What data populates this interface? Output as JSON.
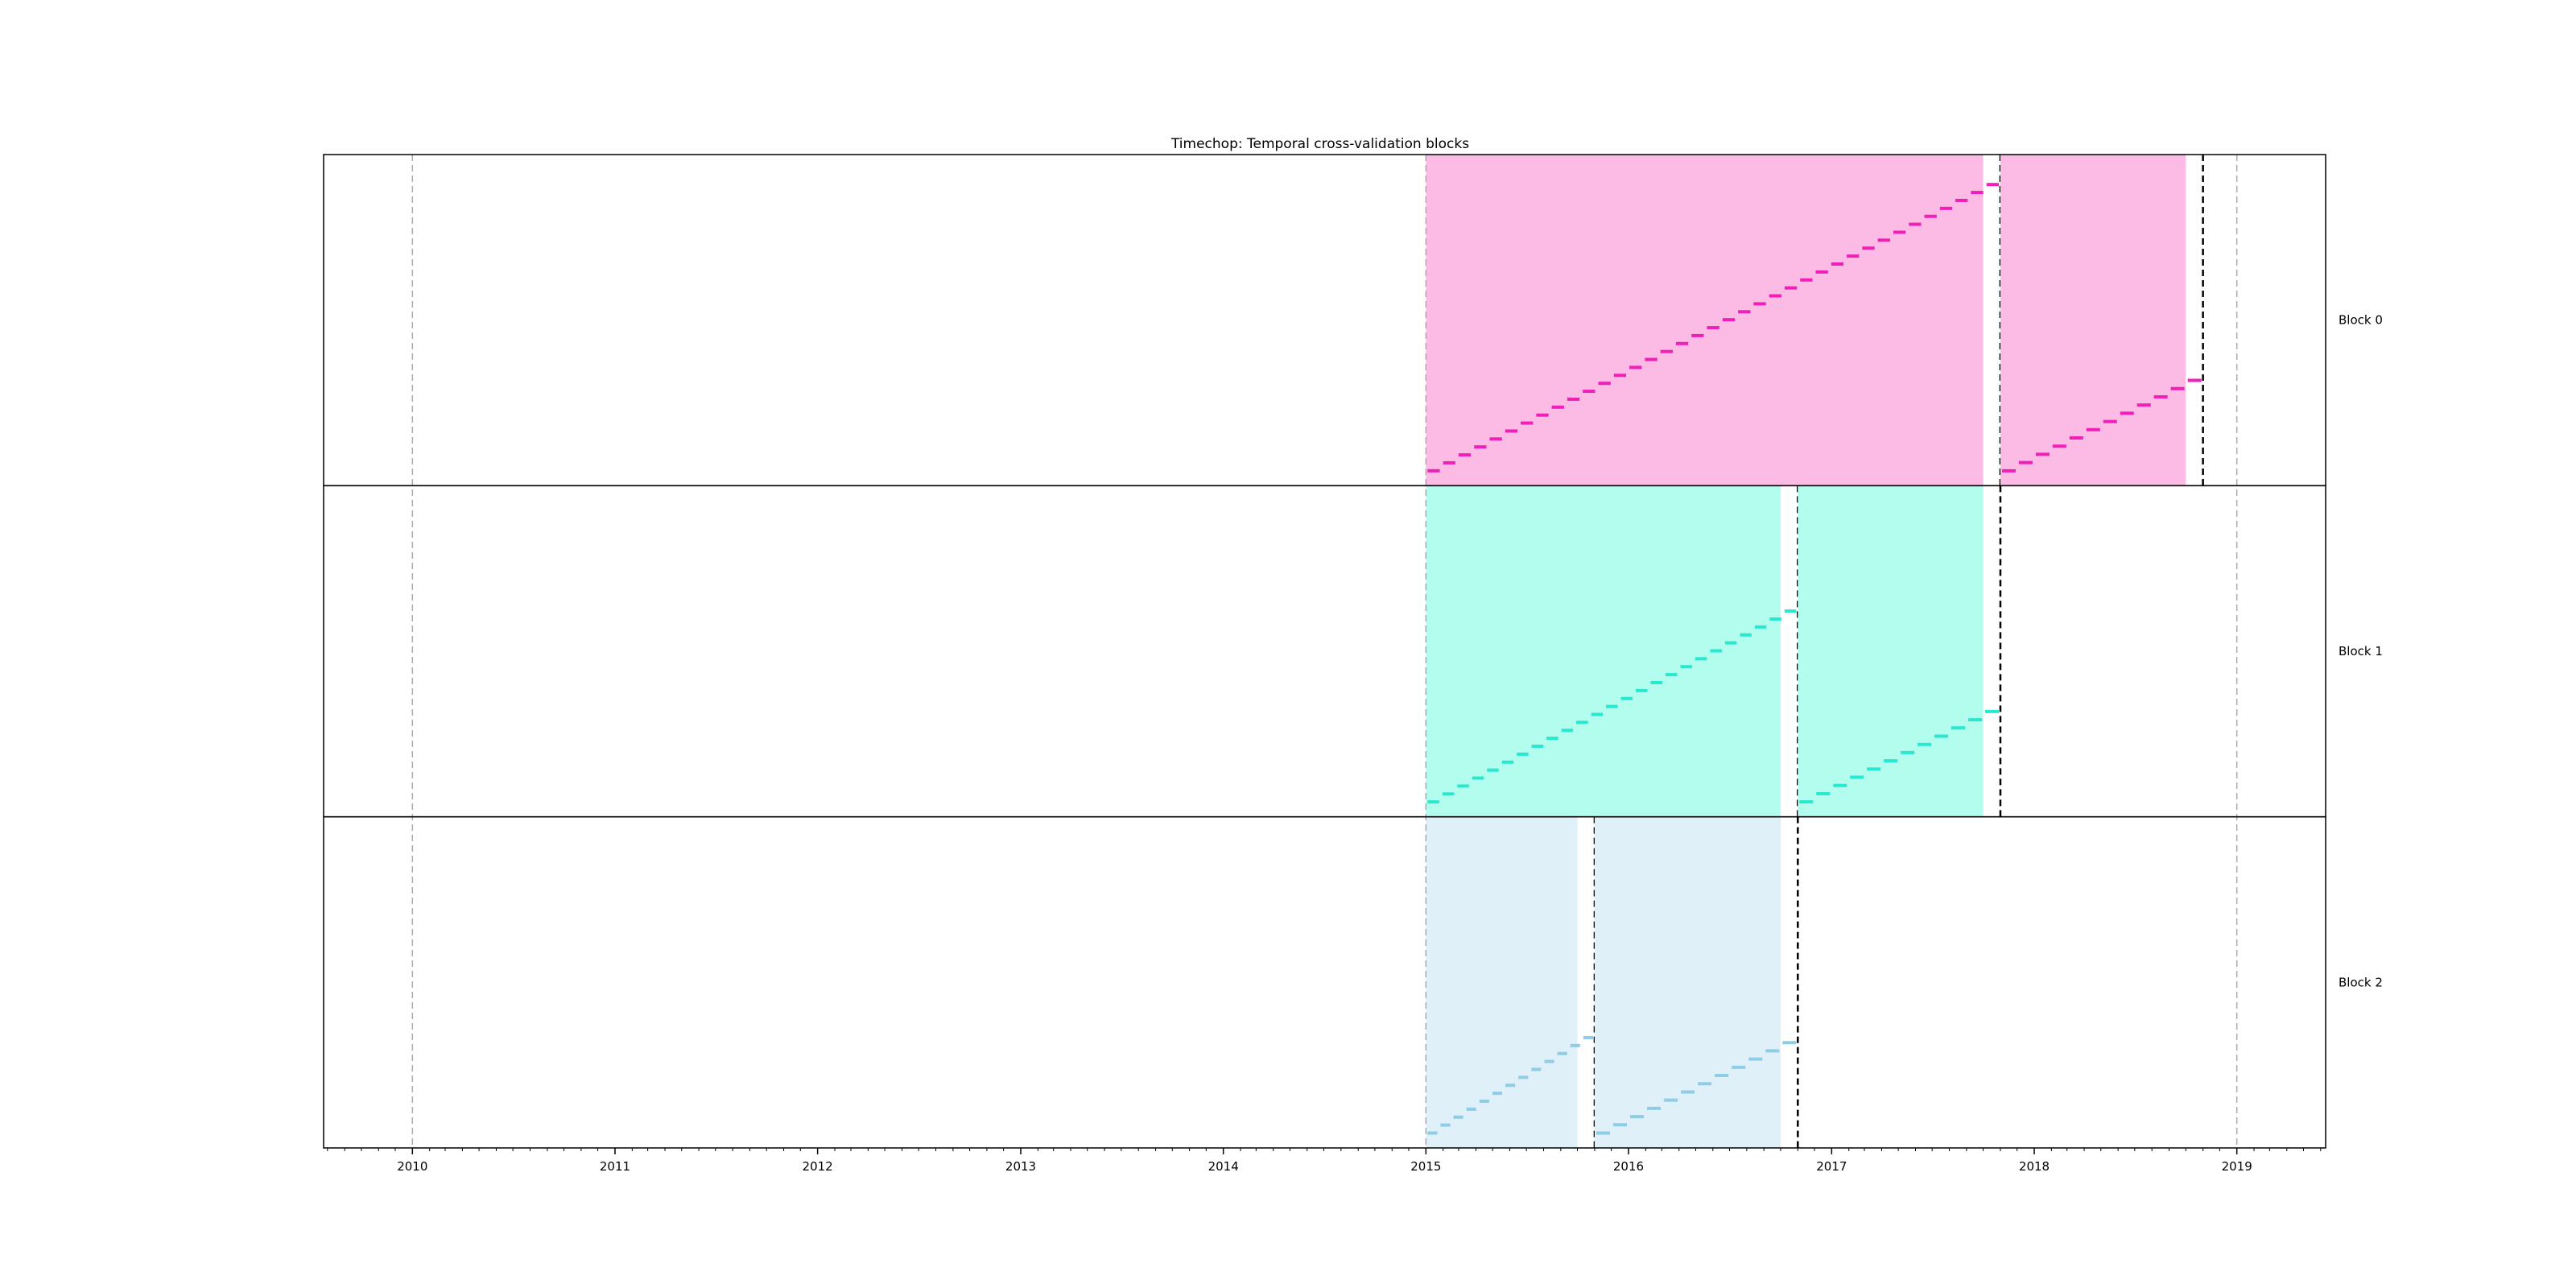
{
  "chart_data": {
    "type": "timeline",
    "title": "Timechop: Temporal cross-validation blocks",
    "xlim": [
      "2009-07-25",
      "2019-06-10"
    ],
    "x_ticks": [
      {
        "label": "2010",
        "date": "2010-01-01"
      },
      {
        "label": "2011",
        "date": "2011-01-01"
      },
      {
        "label": "2012",
        "date": "2012-01-01"
      },
      {
        "label": "2013",
        "date": "2013-01-01"
      },
      {
        "label": "2014",
        "date": "2014-01-01"
      },
      {
        "label": "2015",
        "date": "2015-01-01"
      },
      {
        "label": "2016",
        "date": "2016-01-01"
      },
      {
        "label": "2017",
        "date": "2017-01-01"
      },
      {
        "label": "2018",
        "date": "2018-01-01"
      },
      {
        "label": "2019",
        "date": "2019-01-01"
      }
    ],
    "boundary_lines": [
      "2010-01-01",
      "2015-01-01",
      "2019-01-01"
    ],
    "blocks": [
      {
        "label": "Block 0",
        "color_shade": "#fbbbe4",
        "color_mark": "#f01fb8",
        "train": {
          "start": "2015-01-01",
          "end": "2017-10-01",
          "split": "2017-11-01",
          "steps": 37
        },
        "test": {
          "start": "2017-11-01",
          "end": "2018-10-01",
          "split": "2018-11-01",
          "steps": 12
        }
      },
      {
        "label": "Block 1",
        "color_shade": "#b3fdee",
        "color_mark": "#29e8d0",
        "train": {
          "start": "2015-01-01",
          "end": "2016-10-01",
          "split": "2016-11-01",
          "steps": 25
        },
        "test": {
          "start": "2016-11-01",
          "end": "2017-10-01",
          "split": "2017-11-01",
          "steps": 12
        }
      },
      {
        "label": "Block 2",
        "color_shade": "#dff0f8",
        "color_mark": "#8fcde6",
        "train": {
          "start": "2015-01-01",
          "end": "2015-10-01",
          "split": "2015-11-01",
          "steps": 13
        },
        "test": {
          "start": "2015-11-01",
          "end": "2016-10-01",
          "split": "2016-11-01",
          "steps": 12
        }
      }
    ]
  }
}
